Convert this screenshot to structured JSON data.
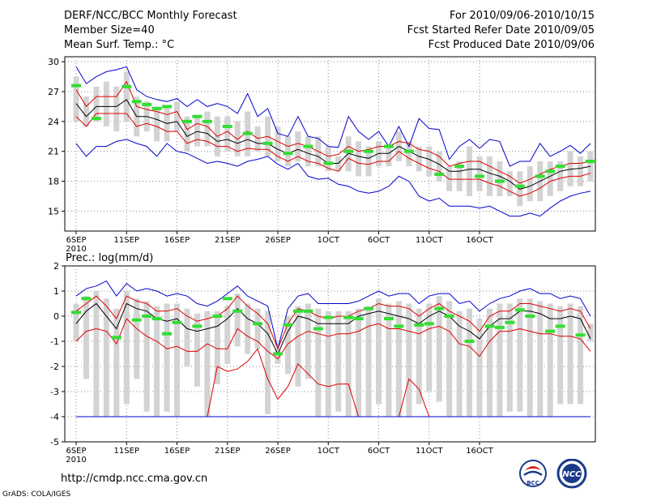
{
  "header": {
    "title": "DERF/NCC/BCC Monthly Forecast",
    "member_size": "Member Size=40",
    "variable": "Mean Surf. Temp.: °C",
    "period": "For 2010/09/06-2010/10/15",
    "refer_date": "Fcst Started Refer Date 2010/09/05",
    "produced_date": "Fcst Produced Date 2010/09/06"
  },
  "footer": {
    "url": "http://cmdp.ncc.cma.gov.cn",
    "credit": "GrADS: COLA/IGES"
  },
  "logos": {
    "bcc": "BCC",
    "ncc": "NCC"
  },
  "colors": {
    "grey_box": "#d3d3d3",
    "green_obs": "#33dd33",
    "blue_envelope": "#0000cc",
    "red_spread": "#dd0000",
    "mean_line": "#000000"
  },
  "chart_data": [
    {
      "type": "line",
      "title": "Mean Surf. Temp.: °C",
      "x_ticks": [
        "6SEP",
        "11SEP",
        "16SEP",
        "21SEP",
        "26SEP",
        "1OCT",
        "6OCT",
        "11OCT",
        "16OCT"
      ],
      "x_year": "2010",
      "ylim": [
        13,
        30.5
      ],
      "y_ticks": [
        15,
        18,
        21,
        24,
        27,
        30
      ],
      "series": [
        {
          "name": "ensemble max",
          "color": "blue",
          "values": [
            29.5,
            27.8,
            28.5,
            29,
            29.2,
            29.5,
            27.2,
            26.5,
            26.2,
            26,
            26.3,
            25.5,
            26.2,
            25.5,
            25.8,
            25.5,
            24.8,
            26.8,
            24.5,
            25.3,
            22.8,
            22.5,
            24.5,
            22.5,
            22.3,
            21.5,
            21.4,
            24.5,
            23,
            22.2,
            23,
            21.5,
            23.5,
            21.5,
            24.3,
            23.3,
            23.2,
            20.2,
            21.5,
            22.2,
            21.3,
            22.2,
            22,
            19.5,
            20,
            20,
            21.8,
            20.5,
            21,
            21.6,
            20.8,
            21.8
          ]
        },
        {
          "name": "mean + spread",
          "color": "red",
          "values": [
            27.2,
            25.5,
            26.5,
            26.5,
            26.5,
            28,
            25.5,
            25.2,
            25,
            24.7,
            25,
            23.2,
            23.8,
            23.5,
            22.5,
            23,
            22.2,
            23,
            22.3,
            22.5,
            22,
            21.5,
            21.8,
            21.5,
            21,
            20.5,
            20.7,
            21.5,
            21,
            21.2,
            21.5,
            21.5,
            22,
            21.8,
            21.2,
            21,
            20.5,
            19.5,
            19.8,
            20,
            20,
            19.5,
            19,
            18.5,
            17.8,
            18.2,
            18.7,
            19.2,
            19.5,
            19.8,
            19.8,
            20
          ]
        },
        {
          "name": "ensemble mean",
          "color": "black",
          "values": [
            25.8,
            24.5,
            25.5,
            25.5,
            25.5,
            26.2,
            24.5,
            24.5,
            24.2,
            23.8,
            24,
            22.5,
            23,
            22.8,
            22,
            22.2,
            21.8,
            22.2,
            21.8,
            21.8,
            21.2,
            20.8,
            21.2,
            20.8,
            20.5,
            19.8,
            19.8,
            20.8,
            20.5,
            20.3,
            20.8,
            20.8,
            21.5,
            21,
            20.5,
            20.2,
            19.7,
            19,
            19,
            19.2,
            19.2,
            18.8,
            18.5,
            18,
            17.2,
            17.5,
            18,
            18.5,
            19,
            19.2,
            19.3,
            19.5
          ]
        },
        {
          "name": "mean - spread",
          "color": "red",
          "values": [
            24.5,
            23.5,
            24.8,
            24.8,
            24.8,
            24.8,
            23.5,
            23.8,
            23.5,
            23,
            23,
            21.8,
            22.2,
            22,
            21.5,
            21.5,
            21,
            21.3,
            21.2,
            21.2,
            20.5,
            20,
            20.5,
            20,
            19.8,
            19.3,
            19,
            20.3,
            19.8,
            19.7,
            20,
            20,
            21,
            20.3,
            19.8,
            19.3,
            19,
            18.2,
            18.2,
            18.2,
            18.2,
            17.8,
            17.5,
            17,
            16.5,
            16.8,
            17.3,
            18,
            18.3,
            18.5,
            18.5,
            18.8
          ]
        },
        {
          "name": "ensemble min",
          "color": "blue",
          "values": [
            21.8,
            20.5,
            21.5,
            21.5,
            22,
            22.2,
            21.8,
            21.5,
            20.5,
            21.8,
            21,
            20.8,
            20.3,
            19.8,
            20,
            19.8,
            19.5,
            20,
            20.2,
            20.5,
            19.7,
            19.2,
            19.8,
            18.5,
            18.2,
            18.3,
            17.7,
            17.5,
            17,
            16.8,
            17,
            17.5,
            18.5,
            18,
            16.5,
            16,
            16.3,
            15.5,
            15.5,
            15.5,
            15.3,
            15.5,
            15,
            14.5,
            14.5,
            14.8,
            14.5,
            15.3,
            16,
            16.5,
            16.8,
            17
          ]
        },
        {
          "name": "box upper",
          "color": "grey",
          "values": [
            28.5,
            26.5,
            27.5,
            28,
            27.5,
            29,
            26.5,
            26,
            25.5,
            25.5,
            26,
            24.5,
            24.5,
            25,
            24.5,
            24.5,
            24,
            25,
            23.5,
            24.5,
            23.5,
            22.5,
            23,
            22.5,
            22.5,
            21.5,
            20.5,
            22.5,
            22,
            21.5,
            22,
            21.5,
            23,
            22,
            21.5,
            21.5,
            21,
            19.5,
            20,
            21.5,
            20.5,
            20.5,
            20,
            19,
            19,
            19.5,
            20,
            20,
            20,
            21,
            20.5,
            21
          ]
        },
        {
          "name": "box lower",
          "color": "grey",
          "values": [
            24,
            23.5,
            24,
            23.5,
            23,
            24,
            22.5,
            23,
            22,
            22,
            23,
            21,
            21.5,
            21.5,
            20.5,
            21,
            20.5,
            20.5,
            21,
            20.5,
            20,
            19.5,
            20,
            19.5,
            19.5,
            19,
            19,
            19,
            18.5,
            18.5,
            19.5,
            19.5,
            20,
            19.5,
            19,
            18.5,
            18,
            17,
            17,
            16.5,
            17,
            16.5,
            16.5,
            16.5,
            15.5,
            16,
            16,
            16.5,
            17,
            17.5,
            17.5,
            18
          ]
        },
        {
          "name": "observed",
          "color": "green",
          "values": [
            27.6,
            null,
            24.3,
            null,
            null,
            27.5,
            26,
            25.7,
            25.3,
            25.5,
            null,
            24,
            24.5,
            24,
            null,
            23.5,
            null,
            22.8,
            null,
            21.8,
            null,
            20.8,
            null,
            21.5,
            null,
            19.8,
            null,
            21,
            null,
            21,
            null,
            21.5,
            null,
            21,
            null,
            null,
            18.7,
            null,
            19.5,
            null,
            18.5,
            null,
            18,
            null,
            17.5,
            null,
            18.5,
            19,
            19.5,
            null,
            null,
            20
          ]
        }
      ]
    },
    {
      "type": "line",
      "title": "Prec.: log(mm/d)",
      "x_ticks": [
        "6SEP",
        "11SEP",
        "16SEP",
        "21SEP",
        "26SEP",
        "1OCT",
        "6OCT",
        "11OCT",
        "16OCT"
      ],
      "x_year": "2010",
      "ylim": [
        -5,
        2
      ],
      "y_ticks": [
        -5,
        -4,
        -3,
        -2,
        -1,
        0,
        1,
        2
      ],
      "series": [
        {
          "name": "ensemble max",
          "color": "blue",
          "values": [
            0.8,
            1.1,
            1.2,
            1.4,
            0.8,
            1.3,
            1,
            1.1,
            1,
            0.8,
            0.9,
            0.8,
            0.5,
            0.4,
            0.6,
            0.9,
            1.2,
            0.8,
            0.6,
            0.4,
            -1.3,
            0.3,
            0.8,
            0.9,
            0.5,
            0.5,
            0.5,
            0.5,
            0.6,
            0.8,
            1,
            0.8,
            0.9,
            0.9,
            0.5,
            0.8,
            0.9,
            0.9,
            0.5,
            0.6,
            0.2,
            0.5,
            0.7,
            0.8,
            1,
            1.1,
            0.9,
            0.9,
            0.7,
            0.8,
            0.7,
            0
          ]
        },
        {
          "name": "mean + spread",
          "color": "red",
          "values": [
            0.2,
            0.5,
            0.8,
            0.4,
            -0.1,
            0.8,
            0.6,
            0.5,
            0.2,
            0.2,
            0.3,
            0,
            -0.2,
            -0.1,
            0,
            0.3,
            0.8,
            0.4,
            0.1,
            -0.3,
            -1.3,
            -0.3,
            0.3,
            0.2,
            0,
            -0.1,
            0,
            0,
            0.2,
            0.3,
            0.5,
            0.4,
            0.4,
            0.3,
            0,
            0.3,
            0.5,
            0.2,
            0,
            -0.2,
            -0.6,
            0,
            0.2,
            0.2,
            0.5,
            0.5,
            0.4,
            0.3,
            0.2,
            0.3,
            0.2,
            -0.5
          ]
        },
        {
          "name": "ensemble mean",
          "color": "black",
          "values": [
            -0.3,
            0.2,
            0.5,
            0,
            -0.5,
            0.5,
            0.3,
            0.2,
            -0.1,
            -0.2,
            -0.1,
            -0.5,
            -0.6,
            -0.5,
            -0.4,
            -0.1,
            0.3,
            -0.1,
            -0.3,
            -0.7,
            -1.5,
            -0.6,
            0,
            -0.1,
            -0.3,
            -0.3,
            -0.3,
            -0.3,
            0,
            0.1,
            0.2,
            0.1,
            0,
            -0.1,
            -0.3,
            0,
            0.2,
            0,
            -0.4,
            -0.6,
            -0.9,
            -0.4,
            -0.1,
            -0.1,
            0.2,
            0.2,
            0.1,
            -0.1,
            -0.1,
            0,
            -0.1,
            -0.9
          ]
        },
        {
          "name": "mean - spread",
          "color": "red",
          "values": [
            -1,
            -0.6,
            -0.5,
            -0.6,
            -1.1,
            -0.1,
            -0.5,
            -0.8,
            -1,
            -1.3,
            -1.2,
            -1.4,
            -1.4,
            -1.1,
            -1.3,
            -1.3,
            -0.5,
            -0.8,
            -1,
            -1.4,
            -1.7,
            -1.1,
            -0.8,
            -0.6,
            -0.7,
            -0.8,
            -0.7,
            -0.7,
            -0.6,
            -0.4,
            -0.3,
            -0.5,
            -0.5,
            -0.6,
            -0.7,
            -0.5,
            -0.4,
            -0.6,
            -1.1,
            -1.2,
            -1.6,
            -1,
            -0.6,
            -0.6,
            -0.5,
            -0.6,
            -0.7,
            -0.7,
            -0.8,
            -0.8,
            -0.9,
            -1.4
          ]
        },
        {
          "name": "lower tail",
          "color": "red",
          "values": [
            -4,
            -4,
            -4,
            -4,
            -4,
            -4,
            -4,
            -4,
            -4,
            -4,
            -4,
            -4,
            -4,
            -4,
            -2,
            -2.2,
            -2.1,
            -1.8,
            -1.3,
            -2.5,
            -3.3,
            -2.8,
            -1.9,
            -2.3,
            -2.7,
            -2.8,
            -2.7,
            -2.7,
            -4,
            -4,
            -4,
            -4,
            -4,
            -2.5,
            -2.9,
            -4,
            -4,
            -4,
            -4,
            -4,
            -4,
            -4,
            -4,
            -4,
            -4,
            -4,
            -4,
            -4,
            -4,
            -4,
            -4,
            -4
          ]
        },
        {
          "name": "ensemble min",
          "color": "blue",
          "values": [
            -4,
            -4,
            -4,
            -4,
            -4,
            -4,
            -4,
            -4,
            -4,
            -4,
            -4,
            -4,
            -4,
            -4,
            -4,
            -4,
            -4,
            -4,
            -4,
            -4,
            -4,
            -4,
            -4,
            -4,
            -4,
            -4,
            -4,
            -4,
            -4,
            -4,
            -4,
            -4,
            -4,
            -4,
            -4,
            -4,
            -4,
            -4,
            -4,
            -4,
            -4,
            -4,
            -4,
            -4,
            -4,
            -4,
            -4,
            -4,
            -4,
            -4,
            -4,
            -4
          ]
        },
        {
          "name": "box upper",
          "color": "grey",
          "values": [
            0.5,
            0.8,
            1,
            0.7,
            0.3,
            1,
            0.7,
            0.6,
            0.4,
            0.5,
            0.5,
            0.3,
            0.1,
            0.2,
            0.2,
            0.4,
            0.9,
            0.5,
            0.3,
            0.2,
            -1.3,
            0,
            0.4,
            0.5,
            0.3,
            0.2,
            0.2,
            0.2,
            0.3,
            0.4,
            0.7,
            0.5,
            0.6,
            0.5,
            0.3,
            0.5,
            0.8,
            0.6,
            0.2,
            0.3,
            -0.1,
            0.3,
            0.5,
            0.5,
            0.7,
            0.7,
            0.6,
            0.5,
            0.4,
            0.5,
            0.4,
            -0.3
          ]
        },
        {
          "name": "box lower",
          "color": "grey",
          "values": [
            -1,
            -2.5,
            -4,
            -4,
            -4,
            -3.5,
            -2.5,
            -3.8,
            -4,
            -3.8,
            -4,
            -2,
            -2.8,
            -4,
            -2.7,
            -1.9,
            -1.2,
            -1.5,
            -1.3,
            -3.9,
            -1.9,
            -2.3,
            -2.8,
            -2.5,
            -4,
            -4,
            -3.8,
            -4,
            -4,
            -4,
            -3.5,
            -4,
            -4,
            -4,
            -3.5,
            -3,
            -3.4,
            -4,
            -4,
            -4,
            -4,
            -4,
            -4,
            -3.8,
            -3.8,
            -4,
            -4,
            -4,
            -3.5,
            -3.5,
            -3.5,
            -1
          ]
        },
        {
          "name": "observed",
          "color": "green",
          "values": [
            0.15,
            0.7,
            null,
            null,
            -0.85,
            null,
            -0.15,
            0,
            -0.1,
            -0.7,
            -0.25,
            null,
            -0.4,
            null,
            0,
            0.7,
            0.2,
            null,
            -0.3,
            null,
            -1.5,
            -0.35,
            0.2,
            0.2,
            -0.5,
            -0.05,
            null,
            -0.05,
            -0.1,
            0.3,
            null,
            -0.1,
            -0.4,
            null,
            -0.35,
            -0.3,
            0.3,
            0,
            null,
            -1,
            null,
            -0.4,
            -0.45,
            -0.25,
            0.25,
            0,
            null,
            -0.6,
            -0.4,
            null,
            -0.75,
            null
          ]
        }
      ]
    }
  ]
}
